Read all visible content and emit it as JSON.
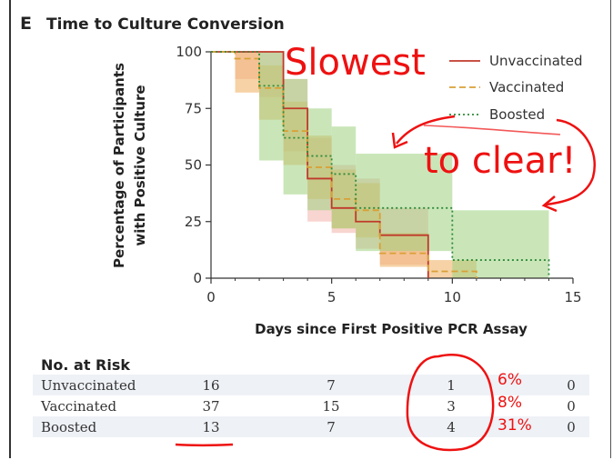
{
  "panel_letter": "E",
  "chart_data": {
    "type": "line",
    "title": "Time to Culture Conversion",
    "xlabel": "Days since First Positive PCR Assay",
    "ylabel_lines": [
      "Percentage of Participants",
      "with Positive Culture"
    ],
    "xlim": [
      0,
      15
    ],
    "ylim": [
      0,
      100
    ],
    "x_ticks": [
      "0",
      "5",
      "10",
      "15"
    ],
    "y_ticks": [
      "0",
      "25",
      "50",
      "75",
      "100"
    ],
    "legend_position": "top-right",
    "series": [
      {
        "name": "Unvaccinated",
        "color": "#c0392b",
        "dash": "solid",
        "ci_color": "#f4b9b0",
        "steps": [
          [
            0,
            100
          ],
          [
            3,
            75
          ],
          [
            4,
            44
          ],
          [
            5,
            31
          ],
          [
            6,
            25
          ],
          [
            7,
            19
          ],
          [
            9,
            0
          ]
        ],
        "ci": [
          [
            1,
            88,
            100
          ],
          [
            2,
            80,
            100
          ],
          [
            3,
            56,
            88
          ],
          [
            4,
            25,
            62
          ],
          [
            5,
            20,
            50
          ],
          [
            6,
            13,
            44
          ],
          [
            7,
            6,
            31
          ],
          [
            9,
            0,
            0
          ]
        ]
      },
      {
        "name": "Vaccinated",
        "color": "#d9a036",
        "dash": "dashed",
        "ci_color": "#f0b46a",
        "steps": [
          [
            0,
            100
          ],
          [
            1,
            97
          ],
          [
            2,
            84
          ],
          [
            3,
            65
          ],
          [
            4,
            49
          ],
          [
            5,
            35
          ],
          [
            6,
            30
          ],
          [
            7,
            11
          ],
          [
            9,
            3
          ],
          [
            11,
            0
          ]
        ],
        "ci": [
          [
            1,
            82,
            100
          ],
          [
            2,
            70,
            94
          ],
          [
            3,
            50,
            78
          ],
          [
            4,
            35,
            63
          ],
          [
            5,
            22,
            48
          ],
          [
            6,
            18,
            42
          ],
          [
            7,
            5,
            20
          ],
          [
            9,
            0,
            8
          ],
          [
            11,
            0,
            0
          ]
        ]
      },
      {
        "name": "Boosted",
        "color": "#2e8b3a",
        "dash": "dotted",
        "ci_color": "#9ed27f",
        "steps": [
          [
            0,
            100
          ],
          [
            2,
            85
          ],
          [
            3,
            62
          ],
          [
            4,
            54
          ],
          [
            5,
            46
          ],
          [
            6,
            31
          ],
          [
            10,
            8
          ],
          [
            14,
            0
          ]
        ],
        "ci": [
          [
            2,
            52,
            100
          ],
          [
            3,
            37,
            88
          ],
          [
            4,
            30,
            75
          ],
          [
            5,
            22,
            67
          ],
          [
            6,
            12,
            55
          ],
          [
            10,
            0,
            30
          ],
          [
            14,
            0,
            0
          ]
        ]
      }
    ],
    "risk_table": {
      "title": "No. at Risk",
      "time_points": [
        0,
        5,
        10,
        15
      ],
      "rows": [
        {
          "label": "Unvaccinated",
          "values": [
            "16",
            "7",
            "1",
            "0"
          ],
          "annotation": "6%"
        },
        {
          "label": "Vaccinated",
          "values": [
            "37",
            "15",
            "3",
            "0"
          ],
          "annotation": "8%"
        },
        {
          "label": "Boosted",
          "values": [
            "13",
            "7",
            "4",
            "0"
          ],
          "annotation": "31%"
        }
      ]
    }
  },
  "annotations": {
    "slowest": "Slowest",
    "to_clear": "to clear!"
  },
  "colors": {
    "annotation_red": "#e11111",
    "risk_row_band": "#eef1f6"
  }
}
